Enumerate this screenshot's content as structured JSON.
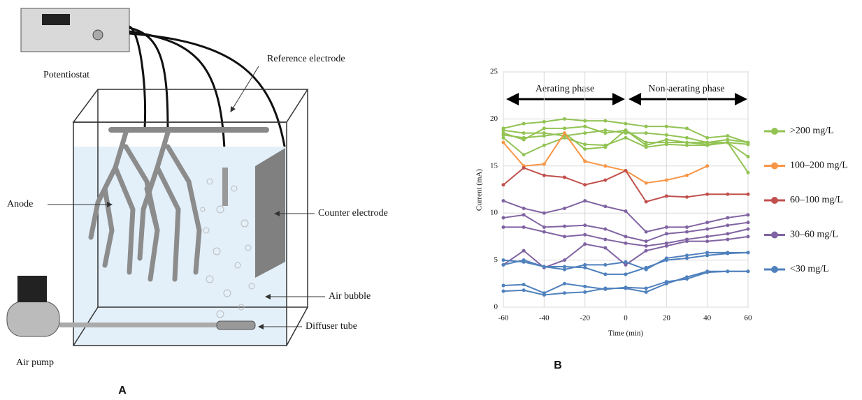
{
  "diagram": {
    "labels": {
      "potentiostat": "Potentiostat",
      "reference": "Reference electrode",
      "anode": "Anode",
      "counter": "Counter electrode",
      "bubble": "Air bubble",
      "diffuser": "Diffuser tube",
      "pump": "Air pump"
    },
    "panel": "A"
  },
  "chart_data": {
    "type": "line",
    "panel": "B",
    "xlabel": "Time (min)",
    "ylabel": "Current (mA)",
    "annotations": [
      "Aerating phase",
      "Non-aerating phase"
    ],
    "x": [
      -60,
      -50,
      -40,
      -30,
      -20,
      -10,
      0,
      10,
      20,
      30,
      40,
      50,
      60
    ],
    "xlim": [
      -60,
      60
    ],
    "xticks": [
      -60,
      -40,
      -20,
      0,
      20,
      40,
      60
    ],
    "ylim": [
      0,
      25
    ],
    "yticks": [
      0,
      5,
      10,
      15,
      20,
      25
    ],
    "series": [
      {
        "name": ">200 mg/L",
        "color": "#92c353",
        "lines": [
          [
            19,
            19.5,
            19.7,
            20,
            19.8,
            19.8,
            19.5,
            19.2,
            19.2,
            19,
            18,
            18.2,
            17.5
          ],
          [
            18.8,
            18.5,
            18.5,
            18.2,
            18.5,
            18.8,
            18.5,
            18.5,
            18.3,
            18,
            17.5,
            17.5,
            17.3
          ],
          [
            18.5,
            17.8,
            19,
            19,
            19.2,
            18.5,
            18.8,
            17.2,
            17.8,
            17.5,
            17.3,
            17.5,
            16
          ],
          [
            18,
            16.2,
            17.2,
            18,
            17.3,
            17.2,
            18,
            17,
            17.3,
            17.2,
            17.2,
            17.5,
            14.3
          ],
          [
            18.3,
            18,
            18.2,
            18.5,
            16.8,
            17,
            18.8,
            17.5,
            17.5,
            17.5,
            17.5,
            17.8,
            17.5
          ]
        ]
      },
      {
        "name": "100–200 mg/L",
        "color": "#f79646",
        "lines": [
          [
            17.5,
            15,
            15.2,
            18.5,
            15.5,
            15,
            14.5,
            13.2,
            13.5,
            14,
            15,
            null,
            null
          ]
        ]
      },
      {
        "name": "60–100 mg/L",
        "color": "#c0504d",
        "lines": [
          [
            13,
            14.8,
            14,
            13.8,
            13,
            13.5,
            14.5,
            11.2,
            11.8,
            11.7,
            12,
            12,
            12
          ]
        ]
      },
      {
        "name": "30–60 mg/L",
        "color": "#8064a2",
        "lines": [
          [
            11.3,
            10.5,
            10,
            10.5,
            11.3,
            10.7,
            10.2,
            8,
            8.5,
            8.5,
            9,
            9.5,
            9.8
          ],
          [
            9.5,
            9.8,
            8.5,
            8.6,
            8.7,
            8.3,
            7.5,
            7,
            7.8,
            8,
            8.3,
            8.7,
            9
          ],
          [
            8.5,
            8.5,
            8,
            7.5,
            7.7,
            7.2,
            6.8,
            6.5,
            6.8,
            7.2,
            7.5,
            7.8,
            8.3
          ],
          [
            4.5,
            6,
            4.2,
            5,
            6.7,
            6.3,
            4.5,
            6,
            6.5,
            7,
            7,
            7.2,
            7.5
          ]
        ]
      },
      {
        "name": "<30 mg/L",
        "color": "#4f81bd",
        "lines": [
          [
            5,
            4.8,
            4.3,
            4,
            4.5,
            4.5,
            4.8,
            4,
            5.2,
            5.5,
            5.8,
            5.8,
            5.8
          ],
          [
            4.5,
            5,
            4.3,
            4.3,
            4.2,
            3.5,
            3.5,
            4.2,
            5,
            5.2,
            5.5,
            5.7,
            5.8
          ],
          [
            2.3,
            2.4,
            1.5,
            2.5,
            2.2,
            1.9,
            2.1,
            2,
            2.7,
            3,
            3.7,
            3.8,
            3.8
          ],
          [
            1.7,
            1.8,
            1.3,
            1.5,
            1.6,
            2,
            2,
            1.6,
            2.5,
            3.2,
            3.8,
            3.8,
            3.8
          ]
        ]
      }
    ]
  }
}
